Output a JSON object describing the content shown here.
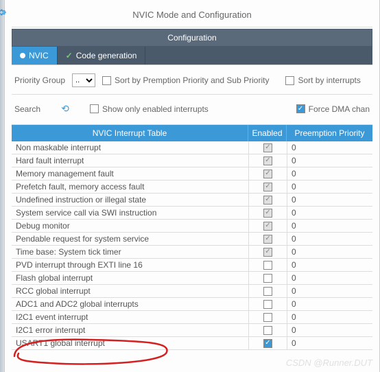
{
  "header": {
    "title": "NVIC Mode and Configuration",
    "subheader": "Configuration"
  },
  "tabs": [
    {
      "label": "NVIC",
      "active": true,
      "icon": "bullet"
    },
    {
      "label": "Code generation",
      "active": false,
      "icon": "check"
    }
  ],
  "filters": {
    "priority_group_label": "Priority Group",
    "priority_group_value": "..",
    "sort_preemption": {
      "label": "Sort by Premption Priority and Sub Priority",
      "checked": false
    },
    "sort_interrupts": {
      "label": "Sort by interrupts",
      "checked": false
    },
    "search_label": "Search",
    "show_only_enabled": {
      "label": "Show only enabled interrupts",
      "checked": false
    },
    "force_dma": {
      "label": "Force DMA chan",
      "checked": true
    }
  },
  "table": {
    "headers": {
      "name": "NVIC Interrupt Table",
      "enabled": "Enabled",
      "priority": "Preemption Priority"
    },
    "rows": [
      {
        "name": "Non maskable interrupt",
        "enabled": true,
        "locked": true,
        "priority": "0"
      },
      {
        "name": "Hard fault interrupt",
        "enabled": true,
        "locked": true,
        "priority": "0"
      },
      {
        "name": "Memory management fault",
        "enabled": true,
        "locked": true,
        "priority": "0"
      },
      {
        "name": "Prefetch fault, memory access fault",
        "enabled": true,
        "locked": true,
        "priority": "0"
      },
      {
        "name": "Undefined instruction or illegal state",
        "enabled": true,
        "locked": true,
        "priority": "0"
      },
      {
        "name": "System service call via SWI instruction",
        "enabled": true,
        "locked": true,
        "priority": "0"
      },
      {
        "name": "Debug monitor",
        "enabled": true,
        "locked": true,
        "priority": "0"
      },
      {
        "name": "Pendable request for system service",
        "enabled": true,
        "locked": true,
        "priority": "0"
      },
      {
        "name": "Time base: System tick timer",
        "enabled": true,
        "locked": true,
        "priority": "0"
      },
      {
        "name": "PVD interrupt through EXTI line 16",
        "enabled": false,
        "locked": false,
        "priority": "0"
      },
      {
        "name": "Flash global interrupt",
        "enabled": false,
        "locked": false,
        "priority": "0"
      },
      {
        "name": "RCC global interrupt",
        "enabled": false,
        "locked": false,
        "priority": "0"
      },
      {
        "name": "ADC1 and ADC2 global interrupts",
        "enabled": false,
        "locked": false,
        "priority": "0"
      },
      {
        "name": "I2C1 event interrupt",
        "enabled": false,
        "locked": false,
        "priority": "0"
      },
      {
        "name": "I2C1 error interrupt",
        "enabled": false,
        "locked": false,
        "priority": "0"
      },
      {
        "name": "USART1 global interrupt",
        "enabled": true,
        "locked": false,
        "priority": "0"
      }
    ]
  },
  "colors": {
    "accent": "#3b99d8",
    "header_dark": "#5a6a7a",
    "annotation": "#d32020",
    "watermark": "#e0e0e0"
  },
  "watermark": "CSDN @Runner.DUT"
}
